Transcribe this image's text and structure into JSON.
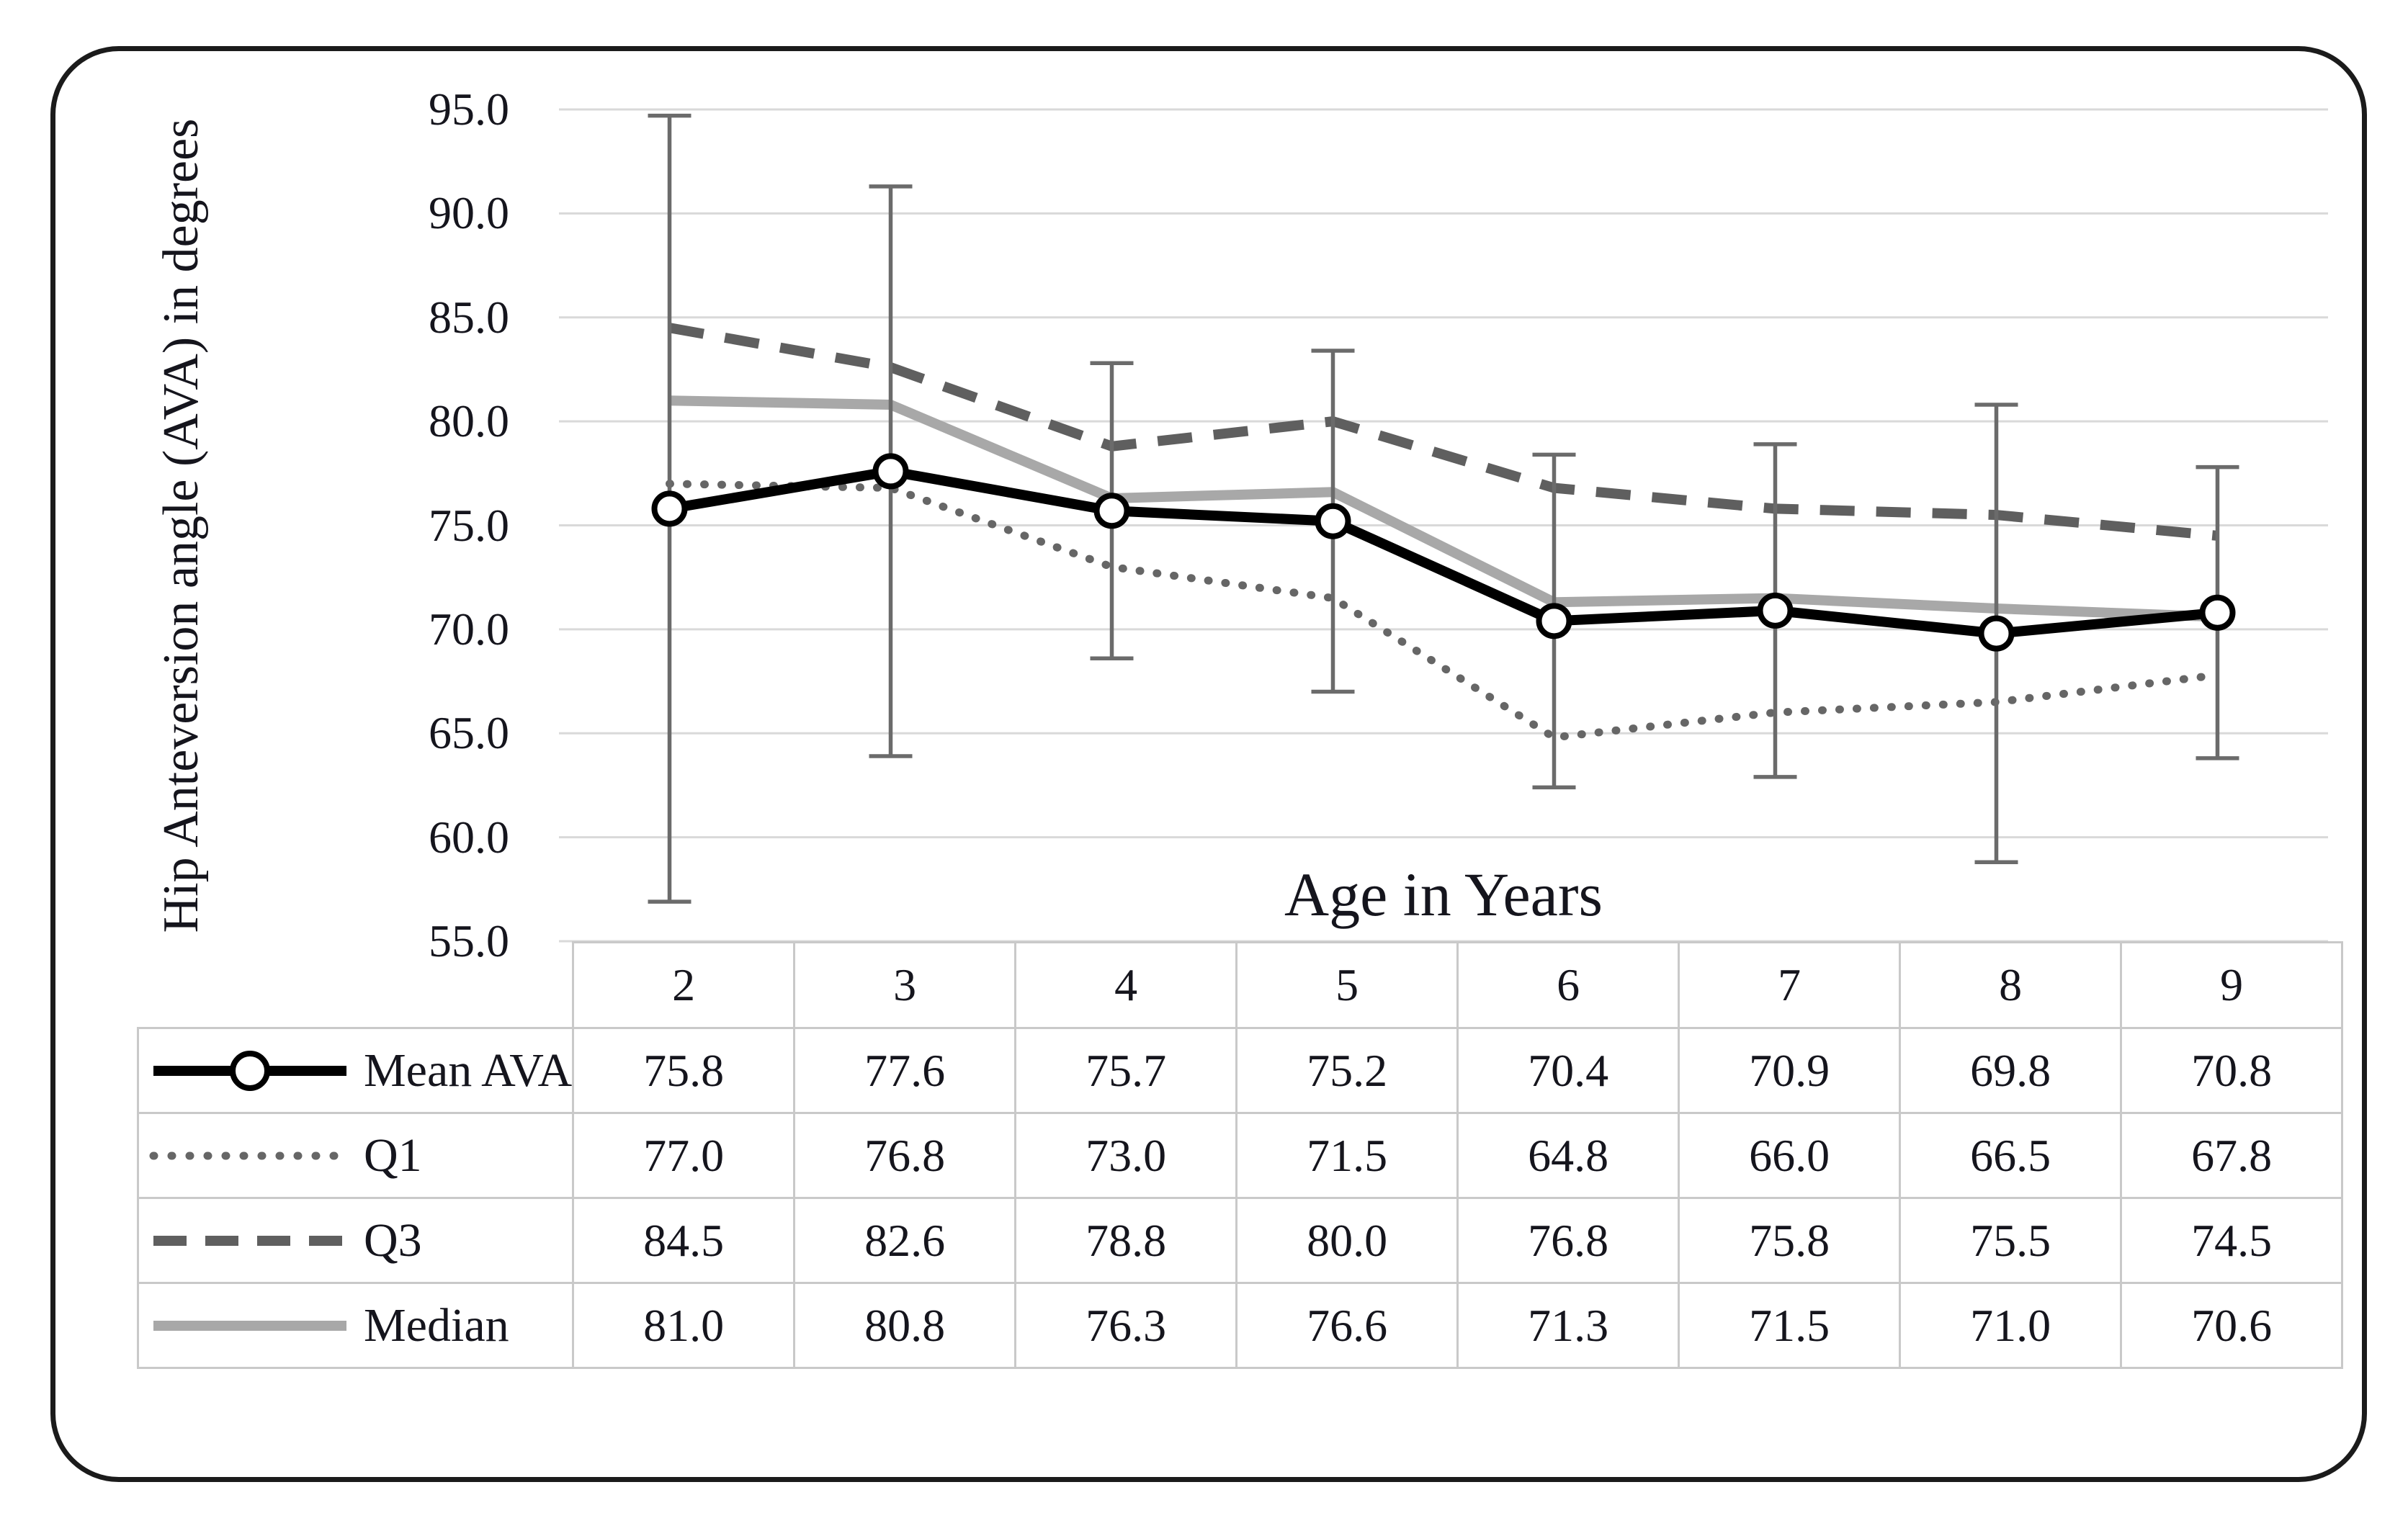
{
  "figure": {
    "y_axis_title": "Hip Anteversion angle (AVA) in degrees",
    "x_axis_title": "Age in Years"
  },
  "chart_data": {
    "type": "line",
    "title": "",
    "xlabel": "Age in Years",
    "ylabel": "Hip Anteversion angle (AVA) in degrees",
    "categories": [
      "2",
      "3",
      "4",
      "5",
      "6",
      "7",
      "8",
      "9"
    ],
    "x": [
      2,
      3,
      4,
      5,
      6,
      7,
      8,
      9
    ],
    "ylim": [
      55.0,
      95.0
    ],
    "ytick_interval": 5.0,
    "yticks_labels": [
      "95.0",
      "90.0",
      "85.0",
      "80.0",
      "75.0",
      "70.0",
      "65.0",
      "60.0",
      "55.0"
    ],
    "grid": "horizontal",
    "legend_position": "attached-data-table-left-column",
    "series": [
      {
        "name": "Mean AVA",
        "line_style": "solid",
        "color": "#000000",
        "line_width": 14,
        "marker": "open-circle",
        "values": [
          75.8,
          77.6,
          75.7,
          75.2,
          70.4,
          70.9,
          69.8,
          70.8
        ],
        "error_bars": {
          "color": "#6b6b6b",
          "lo": [
            56.9,
            63.9,
            68.6,
            67.0,
            62.4,
            62.9,
            58.8,
            63.8
          ],
          "hi": [
            94.7,
            91.3,
            82.8,
            83.4,
            78.4,
            78.9,
            80.8,
            77.8
          ]
        }
      },
      {
        "name": "Q1",
        "line_style": "dotted",
        "color": "#666666",
        "line_width": 11,
        "marker": "none",
        "values": [
          77.0,
          76.8,
          73.0,
          71.5,
          64.8,
          66.0,
          66.5,
          67.8
        ]
      },
      {
        "name": "Q3",
        "line_style": "dashed",
        "color": "#5f5f5f",
        "line_width": 14,
        "marker": "none",
        "values": [
          84.5,
          82.6,
          78.8,
          80.0,
          76.8,
          75.8,
          75.5,
          74.5
        ]
      },
      {
        "name": "Median",
        "line_style": "solid",
        "color": "#a8a8a8",
        "line_width": 14,
        "marker": "none",
        "values": [
          81.0,
          80.8,
          76.3,
          76.6,
          71.3,
          71.5,
          71.0,
          70.6
        ]
      }
    ]
  },
  "table": {
    "header_row": [
      "2",
      "3",
      "4",
      "5",
      "6",
      "7",
      "8",
      "9"
    ],
    "rows": [
      {
        "label": "Mean AVA",
        "values": [
          "75.8",
          "77.6",
          "75.7",
          "75.2",
          "70.4",
          "70.9",
          "69.8",
          "70.8"
        ]
      },
      {
        "label": "Q1",
        "values": [
          "77.0",
          "76.8",
          "73.0",
          "71.5",
          "64.8",
          "66.0",
          "66.5",
          "67.8"
        ]
      },
      {
        "label": "Q3",
        "values": [
          "84.5",
          "82.6",
          "78.8",
          "80.0",
          "76.8",
          "75.8",
          "75.5",
          "74.5"
        ]
      },
      {
        "label": "Median",
        "values": [
          "81.0",
          "80.8",
          "76.3",
          "76.6",
          "71.3",
          "71.5",
          "71.0",
          "70.6"
        ]
      }
    ]
  },
  "colors": {
    "figure_border": "#1b1b1b",
    "gridline": "#d9d9d9",
    "table_border": "#c9c9c9",
    "text": "#15151d",
    "error_bar": "#6b6b6b",
    "marker_fill": "#ffffff"
  }
}
